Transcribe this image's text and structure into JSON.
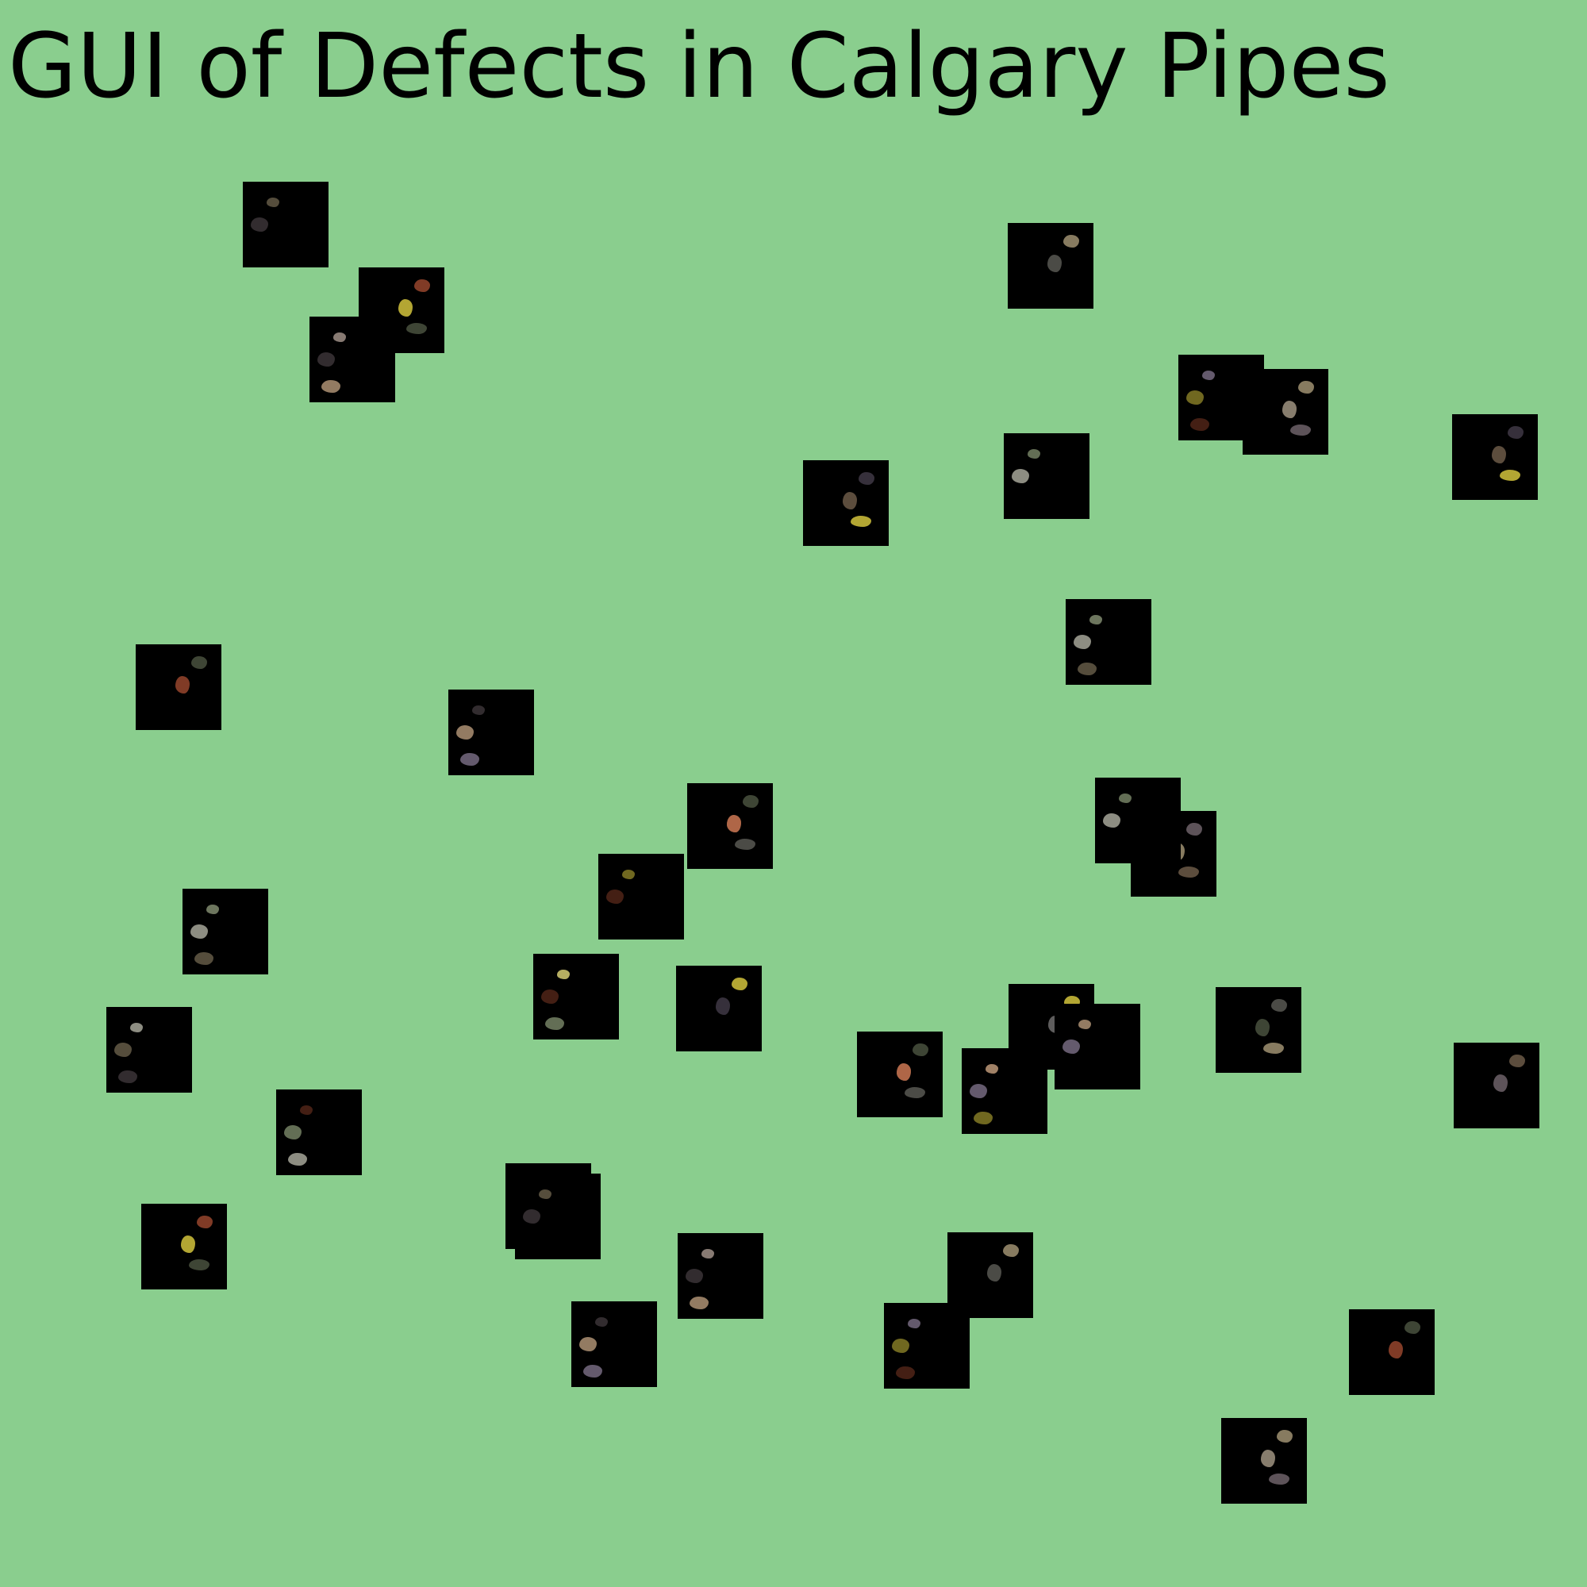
{
  "page": {
    "title": "GUI of Defects in Calgary Pipes",
    "background": "#8ace8e"
  },
  "defects": {
    "count": 36,
    "thumbnail_color": "#000000",
    "palette": [
      "#8f7f88",
      "#a99a78",
      "#d8d8c8",
      "#7c8a6a",
      "#c45a3a",
      "#e0d040",
      "#9a8aa8",
      "#b89a7a"
    ]
  }
}
